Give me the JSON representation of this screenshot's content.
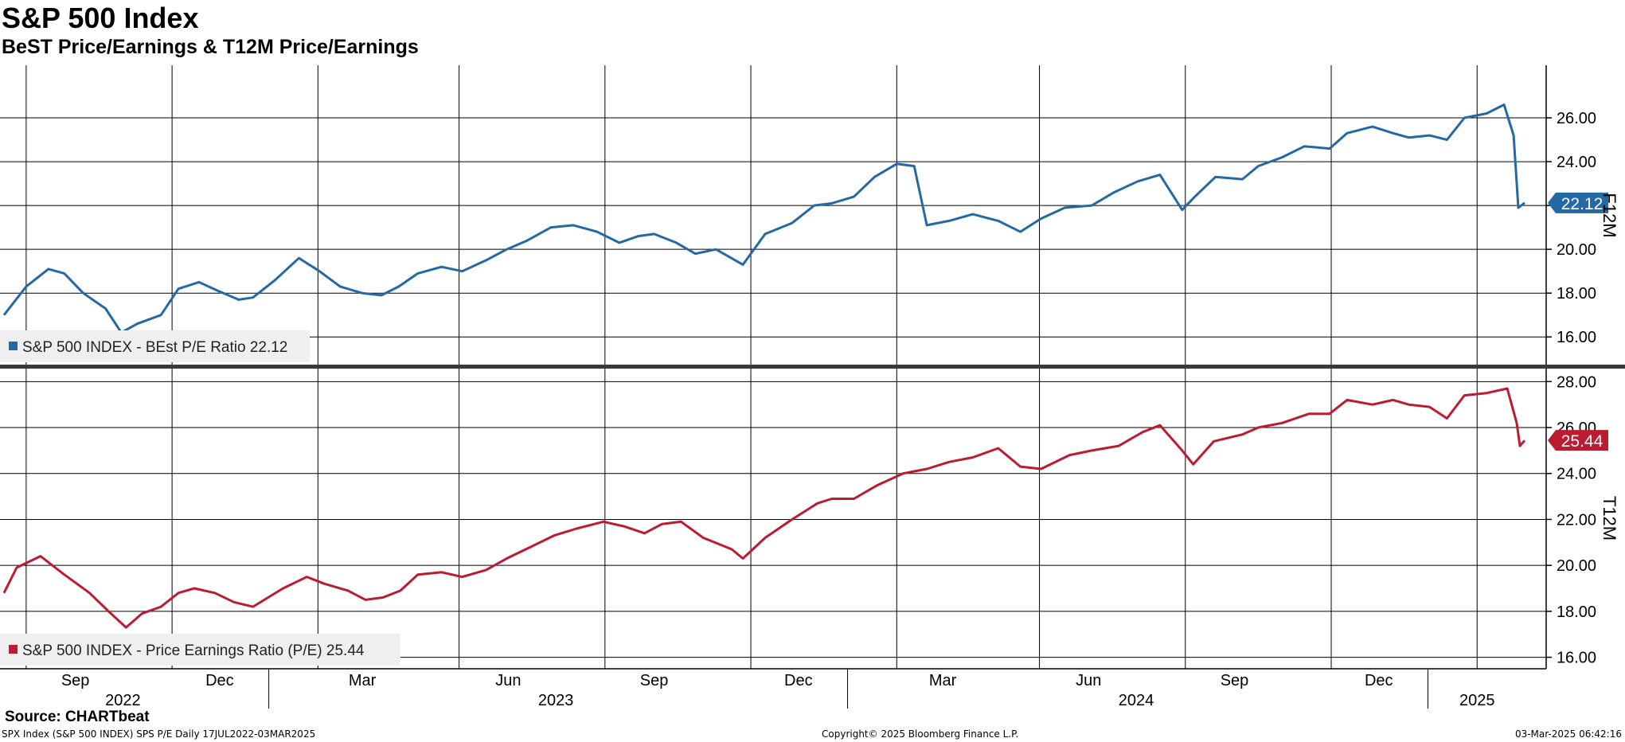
{
  "title": "S&P 500 Index",
  "subtitle": "BeST Price/Earnings & T12M Price/Earnings",
  "source": "Source: CHARTbeat",
  "footer": {
    "left": "SPX Index (S&P 500 INDEX) SPS P/E  Daily 17JUL2022-03MAR2025",
    "center": "Copyright© 2025 Bloomberg Finance L.P.",
    "right": "03-Mar-2025 06:42:16"
  },
  "chart_data": [
    {
      "type": "line",
      "panel": "top",
      "axis_label": "F12M",
      "ylim": [
        14.7,
        28.4
      ],
      "yticks": [
        "16.00",
        "18.00",
        "20.00",
        "22.00",
        "24.00",
        "26.00"
      ],
      "ytick_values": [
        16,
        18,
        20,
        22,
        24,
        26
      ],
      "grid": true,
      "legend": "bottom-left",
      "color": "#2369a5",
      "last_value_label": "22.12",
      "series": [
        {
          "name": "S&P 500 INDEX - BEst P/E Ratio 22.12",
          "x": [
            "2022-07-18",
            "2022-08-01",
            "2022-08-15",
            "2022-08-25",
            "2022-09-06",
            "2022-09-20",
            "2022-09-30",
            "2022-10-10",
            "2022-10-25",
            "2022-11-05",
            "2022-11-18",
            "2022-11-30",
            "2022-12-13",
            "2022-12-22",
            "2023-01-05",
            "2023-01-20",
            "2023-02-02",
            "2023-02-15",
            "2023-03-01",
            "2023-03-13",
            "2023-03-24",
            "2023-04-05",
            "2023-04-20",
            "2023-05-03",
            "2023-05-18",
            "2023-05-31",
            "2023-06-13",
            "2023-06-28",
            "2023-07-12",
            "2023-07-27",
            "2023-08-10",
            "2023-08-22",
            "2023-09-01",
            "2023-09-15",
            "2023-09-27",
            "2023-10-10",
            "2023-10-27",
            "2023-11-10",
            "2023-11-27",
            "2023-12-11",
            "2023-12-22",
            "2024-01-05",
            "2024-01-18",
            "2024-02-01",
            "2024-02-12",
            "2024-02-20",
            "2024-03-05",
            "2024-03-20",
            "2024-04-05",
            "2024-04-19",
            "2024-05-02",
            "2024-05-17",
            "2024-06-03",
            "2024-06-17",
            "2024-07-02",
            "2024-07-16",
            "2024-07-30",
            "2024-08-07",
            "2024-08-20",
            "2024-09-06",
            "2024-09-16",
            "2024-10-01",
            "2024-10-15",
            "2024-10-31",
            "2024-11-11",
            "2024-11-27",
            "2024-12-10",
            "2024-12-20",
            "2025-01-02",
            "2025-01-13",
            "2025-01-24",
            "2025-02-07",
            "2025-02-18",
            "2025-02-24",
            "2025-02-27",
            "2025-03-03"
          ],
          "values": [
            17.0,
            18.3,
            19.1,
            18.9,
            18.0,
            17.3,
            16.2,
            16.6,
            17.0,
            18.2,
            18.5,
            18.1,
            17.7,
            17.8,
            18.6,
            19.6,
            19.0,
            18.3,
            18.0,
            17.9,
            18.3,
            18.9,
            19.2,
            19.0,
            19.5,
            20.0,
            20.4,
            21.0,
            21.1,
            20.8,
            20.3,
            20.6,
            20.7,
            20.3,
            19.8,
            20.0,
            19.3,
            20.7,
            21.2,
            22.0,
            22.1,
            22.4,
            23.3,
            23.9,
            23.8,
            21.1,
            21.3,
            21.6,
            21.3,
            20.8,
            21.4,
            21.9,
            22.0,
            22.6,
            23.1,
            23.4,
            21.8,
            22.4,
            23.3,
            23.2,
            23.8,
            24.2,
            24.7,
            24.6,
            25.3,
            25.6,
            25.3,
            25.1,
            25.2,
            25.0,
            26.0,
            26.2,
            26.6,
            25.2,
            21.9,
            22.12
          ]
        }
      ]
    },
    {
      "type": "line",
      "panel": "bottom",
      "axis_label": "T12M",
      "ylim": [
        15.5,
        28.6
      ],
      "yticks": [
        "16.00",
        "18.00",
        "20.00",
        "22.00",
        "24.00",
        "26.00",
        "28.00"
      ],
      "ytick_values": [
        16,
        18,
        20,
        22,
        24,
        26,
        28
      ],
      "grid": true,
      "legend": "bottom-left",
      "color": "#bd1b31",
      "last_value_label": "25.44",
      "x_axis": {
        "months": [
          "Sep",
          "Dec",
          "Mar",
          "Jun",
          "Sep",
          "Dec",
          "Mar",
          "Jun",
          "Sep",
          "Dec"
        ],
        "month_dates": [
          "2022-09-01",
          "2022-12-01",
          "2023-03-01",
          "2023-06-01",
          "2023-09-01",
          "2023-12-01",
          "2024-03-01",
          "2024-06-01",
          "2024-09-01",
          "2024-12-01"
        ],
        "years": [
          "2022",
          "2023",
          "2024",
          "2025"
        ],
        "year_dates": [
          "2022-10-01",
          "2023-07-01",
          "2024-07-01",
          "2025-02-01"
        ],
        "grid_dates": [
          "2022-08-01",
          "2022-11-01",
          "2023-02-01",
          "2023-05-01",
          "2023-08-01",
          "2023-11-01",
          "2024-02-01",
          "2024-05-01",
          "2024-08-01",
          "2024-11-01",
          "2025-02-01"
        ]
      },
      "series": [
        {
          "name": "S&P 500 INDEX - Price Earnings Ratio (P/E) 25.44",
          "x": [
            "2022-07-18",
            "2022-07-26",
            "2022-08-10",
            "2022-08-25",
            "2022-09-10",
            "2022-09-22",
            "2022-10-03",
            "2022-10-13",
            "2022-10-25",
            "2022-11-05",
            "2022-11-15",
            "2022-11-28",
            "2022-12-10",
            "2022-12-22",
            "2023-01-10",
            "2023-01-25",
            "2023-02-05",
            "2023-02-20",
            "2023-03-03",
            "2023-03-14",
            "2023-03-25",
            "2023-04-05",
            "2023-04-20",
            "2023-05-03",
            "2023-05-18",
            "2023-05-31",
            "2023-06-15",
            "2023-06-30",
            "2023-07-14",
            "2023-07-31",
            "2023-08-13",
            "2023-08-26",
            "2023-09-06",
            "2023-09-18",
            "2023-10-02",
            "2023-10-20",
            "2023-10-27",
            "2023-11-10",
            "2023-11-27",
            "2023-12-13",
            "2023-12-22",
            "2024-01-05",
            "2024-01-20",
            "2024-02-05",
            "2024-02-20",
            "2024-03-05",
            "2024-03-20",
            "2024-04-05",
            "2024-04-19",
            "2024-05-02",
            "2024-05-20",
            "2024-06-03",
            "2024-06-20",
            "2024-07-05",
            "2024-07-16",
            "2024-07-30",
            "2024-08-06",
            "2024-08-19",
            "2024-09-06",
            "2024-09-16",
            "2024-10-01",
            "2024-10-18",
            "2024-10-31",
            "2024-11-11",
            "2024-11-27",
            "2024-12-10",
            "2024-12-20",
            "2025-01-02",
            "2025-01-13",
            "2025-01-24",
            "2025-02-07",
            "2025-02-20",
            "2025-02-26",
            "2025-02-28",
            "2025-03-03"
          ],
          "values": [
            18.8,
            19.9,
            20.4,
            19.6,
            18.8,
            18.0,
            17.3,
            17.9,
            18.2,
            18.8,
            19.0,
            18.8,
            18.4,
            18.2,
            19.0,
            19.5,
            19.2,
            18.9,
            18.5,
            18.6,
            18.9,
            19.6,
            19.7,
            19.5,
            19.8,
            20.3,
            20.8,
            21.3,
            21.6,
            21.9,
            21.7,
            21.4,
            21.8,
            21.9,
            21.2,
            20.7,
            20.3,
            21.2,
            22.0,
            22.7,
            22.9,
            22.9,
            23.5,
            24.0,
            24.2,
            24.5,
            24.7,
            25.1,
            24.3,
            24.2,
            24.8,
            25.0,
            25.2,
            25.8,
            26.1,
            25.0,
            24.4,
            25.4,
            25.7,
            26.0,
            26.2,
            26.6,
            26.6,
            27.2,
            27.0,
            27.2,
            27.0,
            26.9,
            26.4,
            27.4,
            27.5,
            27.7,
            26.2,
            25.2,
            25.44
          ]
        }
      ]
    }
  ]
}
